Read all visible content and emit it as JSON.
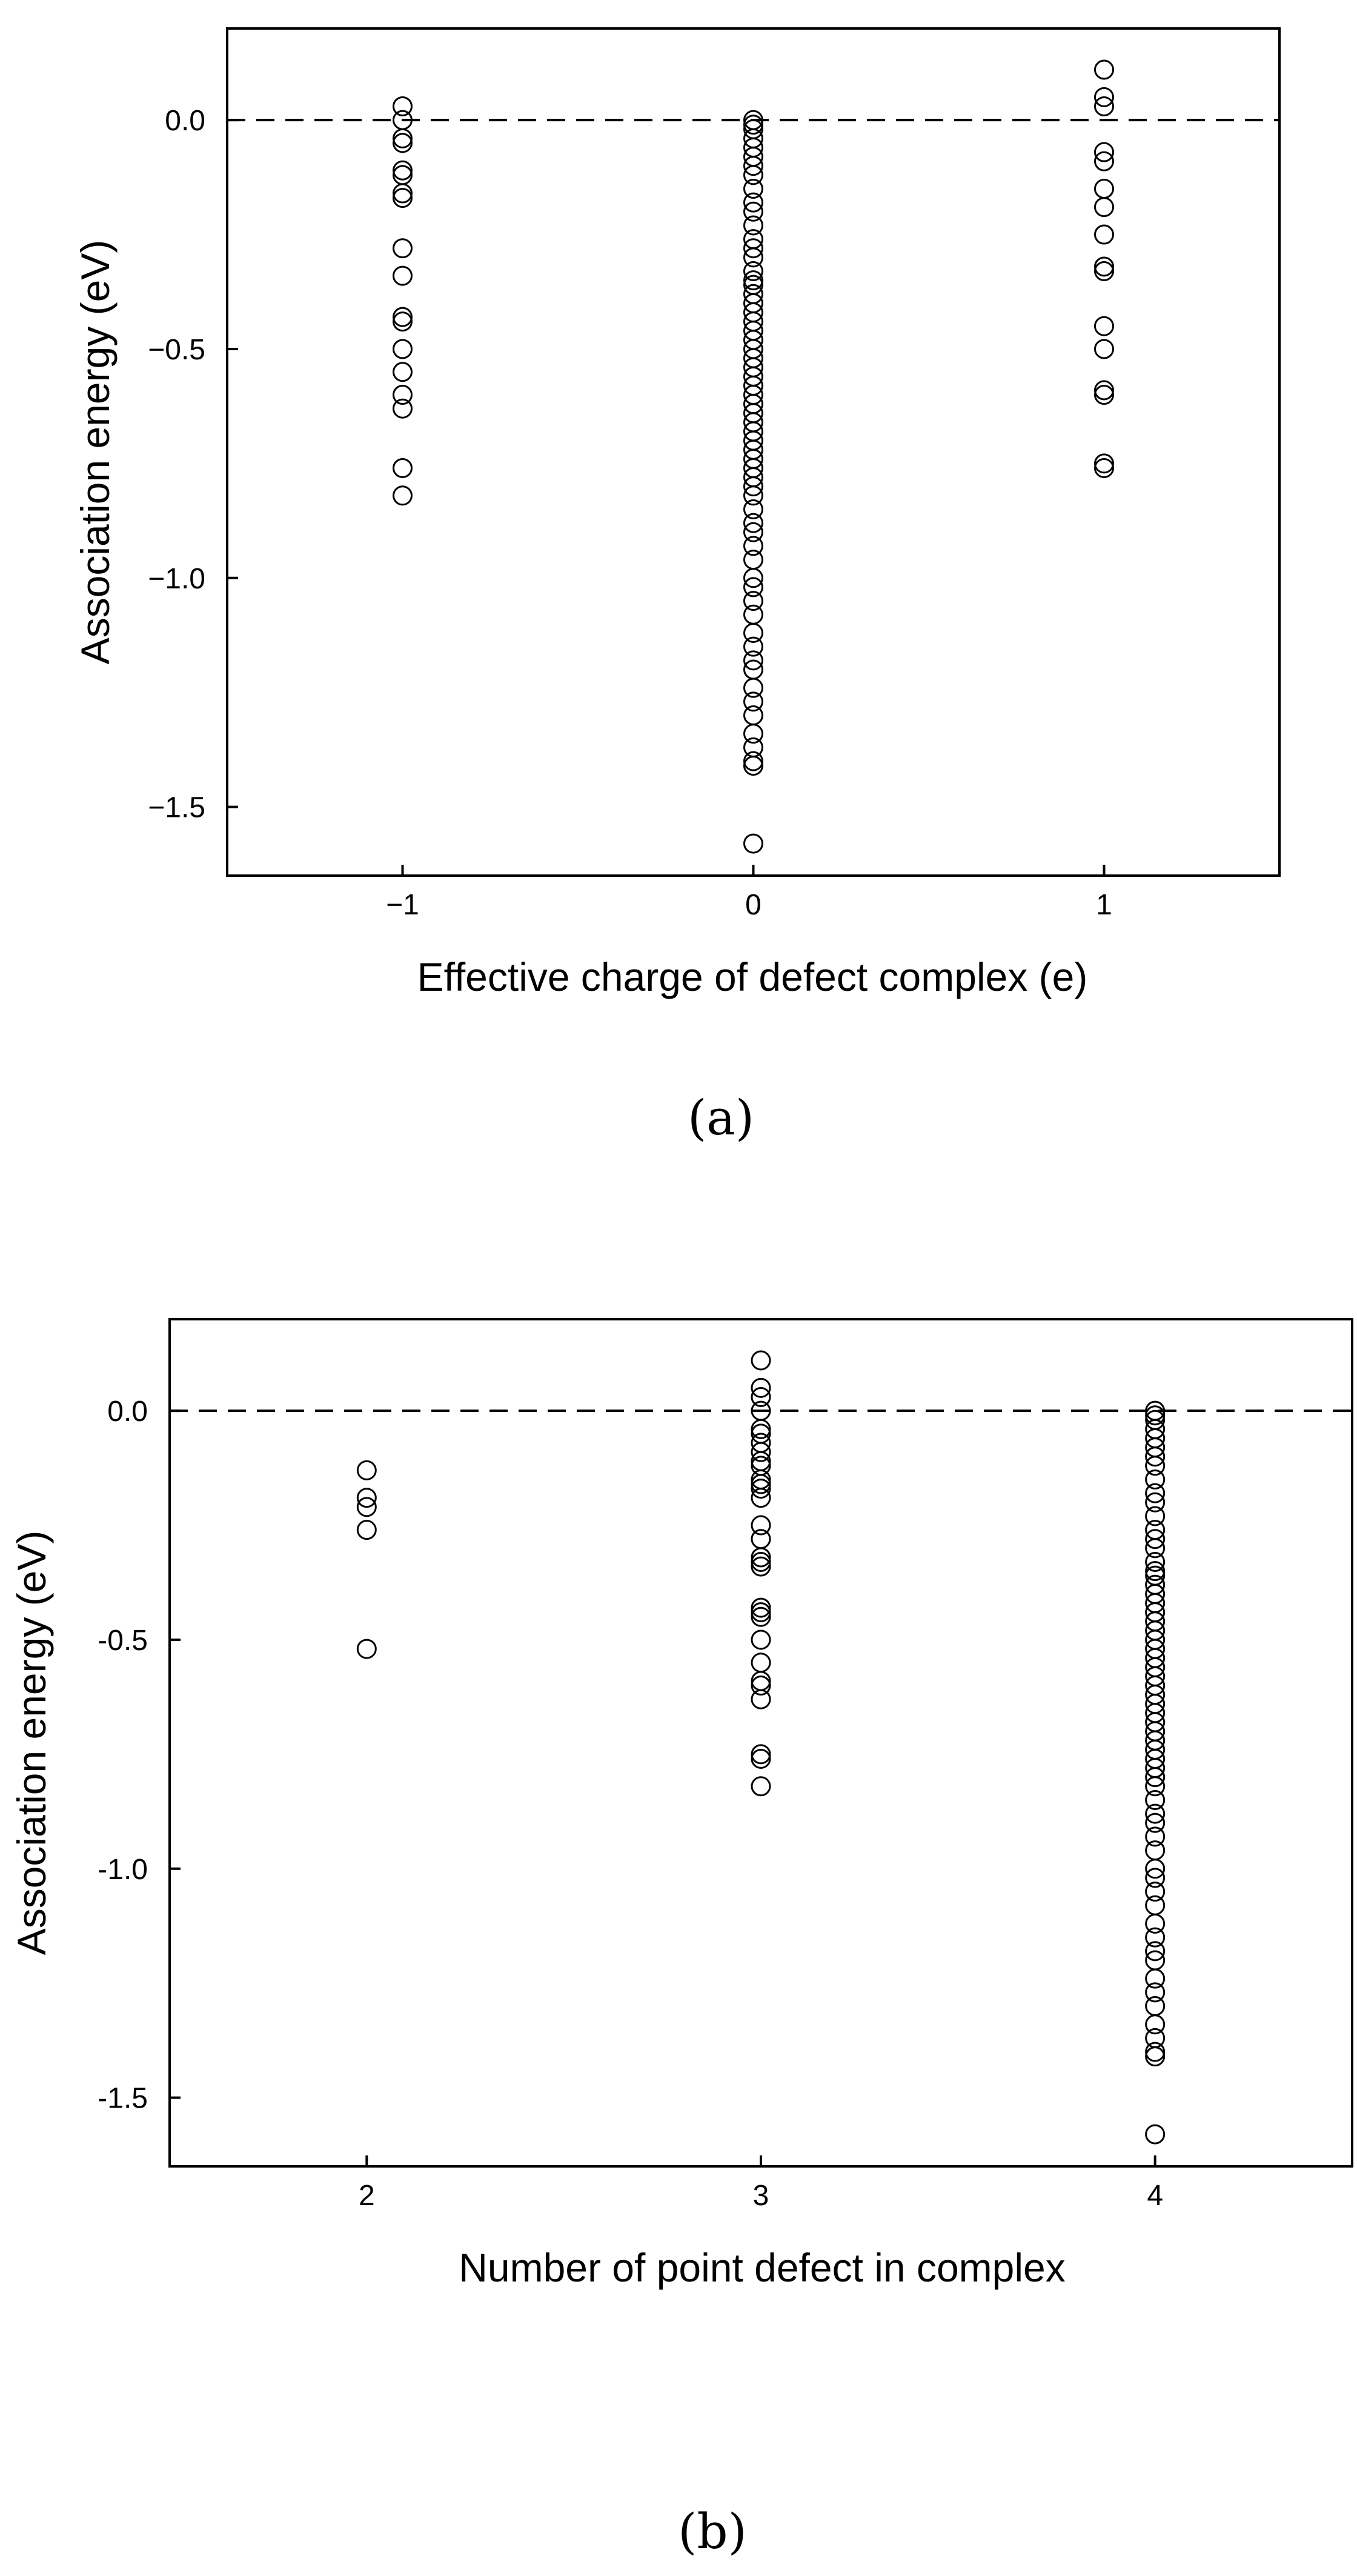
{
  "chart_data": [
    {
      "type": "scatter",
      "panel_label": "(a)",
      "xlabel": "Effective charge of defect complex (e)",
      "ylabel": "Association energy (eV)",
      "xlim": [
        -1.5,
        1.5
      ],
      "ylim": [
        -1.65,
        0.2
      ],
      "xticks": [
        -1,
        0,
        1
      ],
      "xtick_labels": [
        "−1",
        "0",
        "1"
      ],
      "yticks": [
        0.0,
        -0.5,
        -1.0,
        -1.5
      ],
      "ytick_labels": [
        "0.0",
        "−0.5",
        "−1.0",
        "−1.5"
      ],
      "reference_line": {
        "y": 0.0,
        "style": "dashed"
      },
      "marker": "open-circle",
      "grid": false,
      "legend": "none",
      "points": [
        {
          "x": -1,
          "ys": [
            0.03,
            0.0,
            -0.04,
            -0.05,
            -0.11,
            -0.12,
            -0.16,
            -0.17,
            -0.28,
            -0.34,
            -0.43,
            -0.44,
            -0.5,
            -0.55,
            -0.6,
            -0.63,
            -0.76,
            -0.82
          ]
        },
        {
          "x": 0,
          "ys": [
            0.0,
            -0.01,
            -0.02,
            -0.04,
            -0.06,
            -0.08,
            -0.1,
            -0.12,
            -0.15,
            -0.18,
            -0.2,
            -0.23,
            -0.26,
            -0.28,
            -0.3,
            -0.33,
            -0.35,
            -0.36,
            -0.38,
            -0.4,
            -0.42,
            -0.44,
            -0.46,
            -0.48,
            -0.5,
            -0.52,
            -0.54,
            -0.56,
            -0.58,
            -0.6,
            -0.62,
            -0.64,
            -0.66,
            -0.68,
            -0.7,
            -0.72,
            -0.74,
            -0.76,
            -0.78,
            -0.8,
            -0.82,
            -0.85,
            -0.88,
            -0.9,
            -0.93,
            -0.96,
            -1.0,
            -1.02,
            -1.05,
            -1.08,
            -1.12,
            -1.15,
            -1.18,
            -1.2,
            -1.24,
            -1.27,
            -1.3,
            -1.34,
            -1.37,
            -1.4,
            -1.41,
            -1.58
          ]
        },
        {
          "x": 1,
          "ys": [
            0.11,
            0.05,
            0.03,
            -0.07,
            -0.09,
            -0.15,
            -0.19,
            -0.25,
            -0.32,
            -0.33,
            -0.45,
            -0.5,
            -0.59,
            -0.6,
            -0.75,
            -0.76
          ]
        }
      ]
    },
    {
      "type": "scatter",
      "panel_label": "(b)",
      "xlabel": "Number of point defect in complex",
      "ylabel": "Association energy (eV)",
      "xlim": [
        1.5,
        4.5
      ],
      "ylim": [
        -1.65,
        0.2
      ],
      "xticks": [
        2,
        3,
        4
      ],
      "xtick_labels": [
        "2",
        "3",
        "4"
      ],
      "yticks": [
        0.0,
        -0.5,
        -1.0,
        -1.5
      ],
      "ytick_labels": [
        "0.0",
        "-0.5",
        "-1.0",
        "-1.5"
      ],
      "reference_line": {
        "y": 0.0,
        "style": "dashed"
      },
      "marker": "open-circle",
      "grid": false,
      "legend": "none",
      "points": [
        {
          "x": 2,
          "ys": [
            -0.13,
            -0.19,
            -0.21,
            -0.26,
            -0.52
          ]
        },
        {
          "x": 3,
          "ys": [
            0.11,
            0.05,
            0.03,
            0.0,
            -0.04,
            -0.05,
            -0.07,
            -0.09,
            -0.11,
            -0.12,
            -0.15,
            -0.16,
            -0.17,
            -0.19,
            -0.25,
            -0.28,
            -0.32,
            -0.33,
            -0.34,
            -0.43,
            -0.44,
            -0.45,
            -0.5,
            -0.55,
            -0.59,
            -0.6,
            -0.63,
            -0.75,
            -0.76,
            -0.82
          ]
        },
        {
          "x": 4,
          "ys": [
            0.0,
            -0.01,
            -0.02,
            -0.04,
            -0.06,
            -0.08,
            -0.1,
            -0.12,
            -0.15,
            -0.18,
            -0.2,
            -0.23,
            -0.26,
            -0.28,
            -0.3,
            -0.33,
            -0.35,
            -0.36,
            -0.38,
            -0.4,
            -0.42,
            -0.44,
            -0.46,
            -0.48,
            -0.5,
            -0.52,
            -0.54,
            -0.56,
            -0.58,
            -0.6,
            -0.62,
            -0.64,
            -0.66,
            -0.68,
            -0.7,
            -0.72,
            -0.74,
            -0.76,
            -0.78,
            -0.8,
            -0.82,
            -0.85,
            -0.88,
            -0.9,
            -0.93,
            -0.96,
            -1.0,
            -1.02,
            -1.05,
            -1.08,
            -1.12,
            -1.15,
            -1.18,
            -1.2,
            -1.24,
            -1.27,
            -1.3,
            -1.34,
            -1.37,
            -1.4,
            -1.41,
            -1.58
          ]
        }
      ]
    }
  ]
}
